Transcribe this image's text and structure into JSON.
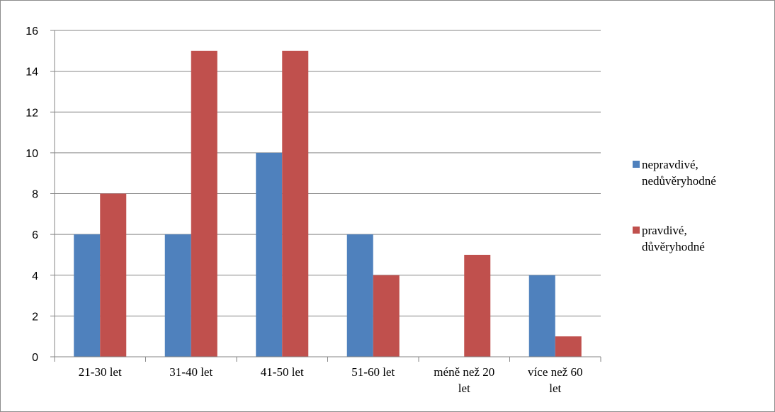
{
  "chart_data": {
    "type": "bar",
    "categories": [
      "21-30 let",
      "31-40 let",
      "41-50 let",
      "51-60 let",
      "méně než 20 let",
      "více než 60 let"
    ],
    "category_lines": [
      [
        "21-30 let"
      ],
      [
        "31-40 let"
      ],
      [
        "41-50 let"
      ],
      [
        "51-60 let"
      ],
      [
        "méně než 20",
        "let"
      ],
      [
        "více než 60",
        "let"
      ]
    ],
    "series": [
      {
        "name": "nepravdivé, nedůvěryhodné",
        "name_lines": [
          "nepravdivé,",
          "nedůvěryhodné"
        ],
        "color": "#4f81bd",
        "values": [
          6,
          6,
          10,
          6,
          0,
          4
        ]
      },
      {
        "name": "pravdivé, důvěryhodné",
        "name_lines": [
          "pravdivé,",
          "důvěryhodné"
        ],
        "color": "#c0504d",
        "values": [
          8,
          15,
          15,
          4,
          5,
          1
        ]
      }
    ],
    "ylim": [
      0,
      16
    ],
    "yticks": [
      0,
      2,
      4,
      6,
      8,
      10,
      12,
      14,
      16
    ],
    "grid": true,
    "legend_position": "right"
  }
}
